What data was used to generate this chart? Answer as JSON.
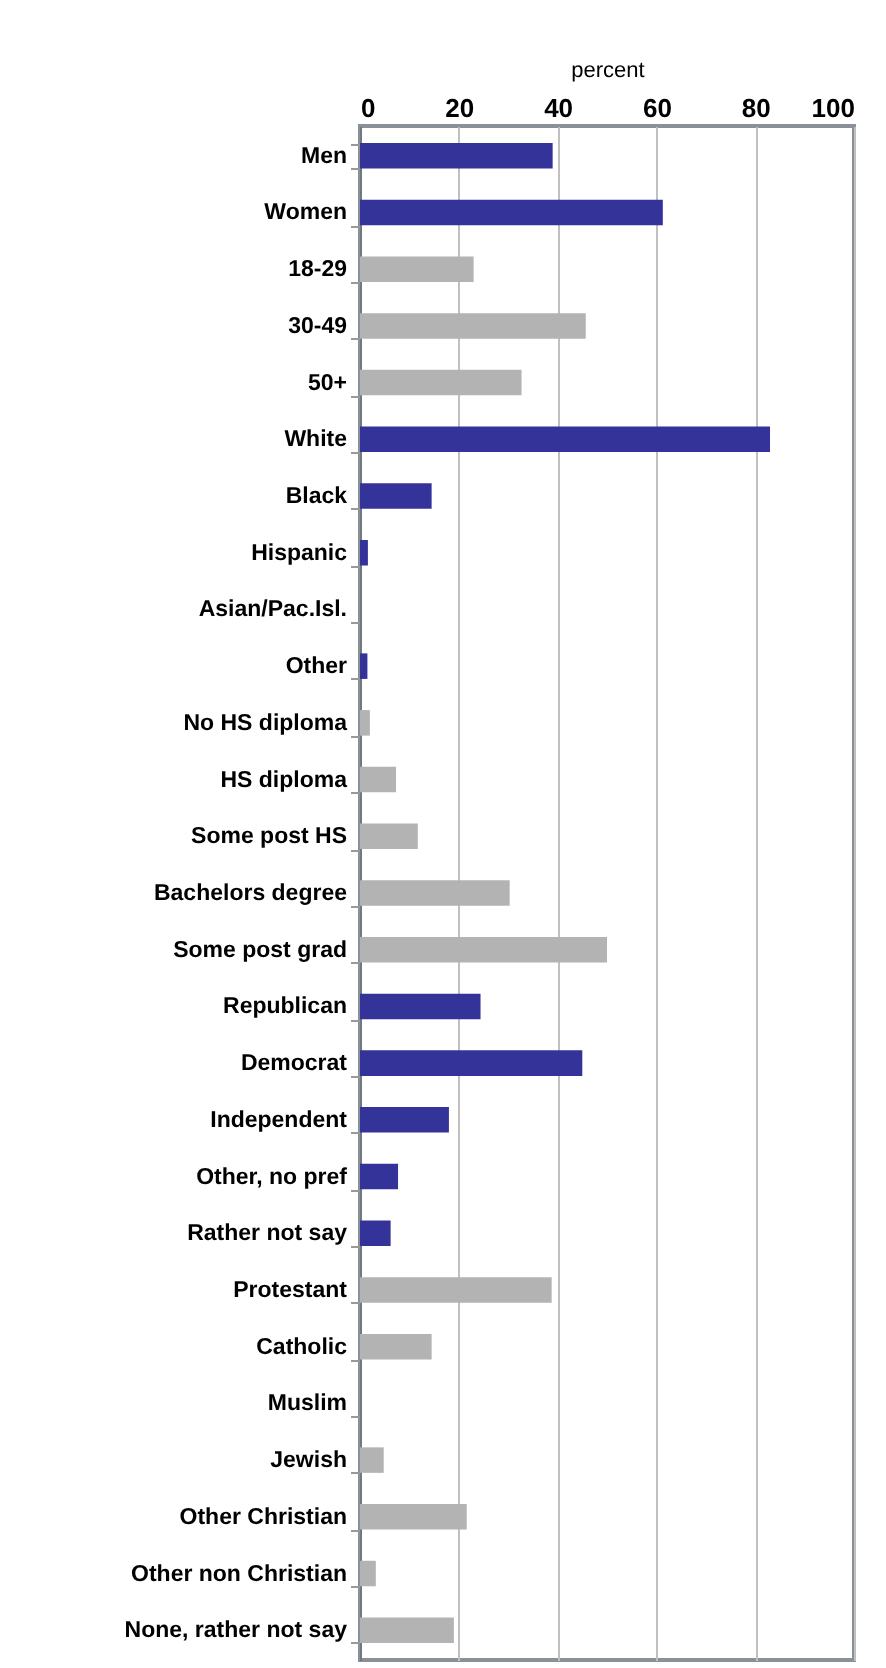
{
  "chart_data": {
    "type": "bar",
    "orientation": "horizontal",
    "xlabel": "percent",
    "categories": [
      "Men",
      "Women",
      "18-29",
      "30-49",
      "50+",
      "White",
      "Black",
      "Hispanic",
      "Asian/Pac.Isl.",
      "Other",
      "No HS diploma",
      "HS diploma",
      "Some post HS",
      "Bachelors degree",
      "Some post grad",
      "Republican",
      "Democrat",
      "Independent",
      "Other, no pref",
      "Rather not say",
      "Protestant",
      "Catholic",
      "Muslim",
      "Jewish",
      "Other Christian",
      "Other non Christian",
      "None, rather not say"
    ],
    "values": [
      39,
      61.3,
      23,
      45.7,
      32.7,
      83,
      14.5,
      1.6,
      0,
      1.5,
      2,
      7.3,
      11.7,
      30.3,
      50,
      24.4,
      45,
      18,
      7.7,
      6.2,
      38.8,
      14.5,
      0,
      4.8,
      21.6,
      3.2,
      19
    ],
    "colors": [
      "#333399",
      "#333399",
      "#b3b3b3",
      "#b3b3b3",
      "#b3b3b3",
      "#333399",
      "#333399",
      "#333399",
      "#333399",
      "#333399",
      "#b3b3b3",
      "#b3b3b3",
      "#b3b3b3",
      "#b3b3b3",
      "#b3b3b3",
      "#333399",
      "#333399",
      "#333399",
      "#333399",
      "#333399",
      "#b3b3b3",
      "#b3b3b3",
      "#b3b3b3",
      "#b3b3b3",
      "#b3b3b3",
      "#b3b3b3",
      "#b3b3b3"
    ],
    "xlim": [
      0,
      100
    ],
    "xticks": [
      0,
      20,
      40,
      60,
      80,
      100
    ],
    "grid": "x"
  }
}
